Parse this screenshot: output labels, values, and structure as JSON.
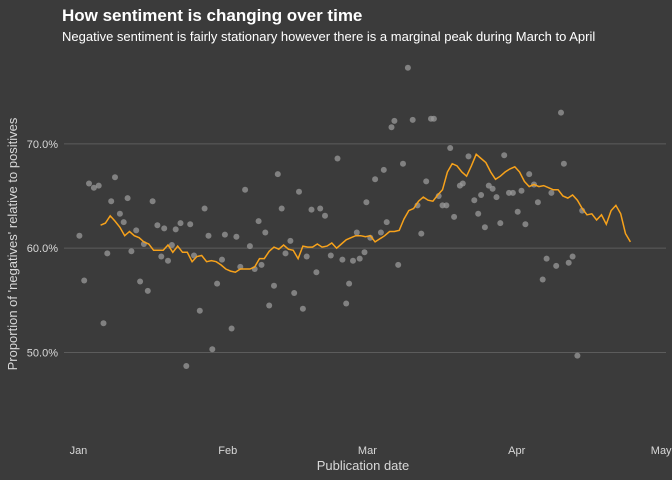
{
  "chart_data": {
    "type": "scatter",
    "title": "How sentiment is changing over time",
    "subtitle": "Negative sentiment is fairly stationary however there is a marginal peak during March to April",
    "xlabel": "Publication date",
    "ylabel": "Proportion of 'negatives' relative to positives",
    "x_range": [
      "2023-12-28",
      "2023-05-03"
    ],
    "x_range_days": [
      -3,
      122
    ],
    "ylim": [
      0.418,
      0.79
    ],
    "x_ticks": [
      {
        "label": "Jan",
        "day": 0
      },
      {
        "label": "Feb",
        "day": 31
      },
      {
        "label": "Mar",
        "day": 60
      },
      {
        "label": "Apr",
        "day": 91
      },
      {
        "label": "May",
        "day": 121
      }
    ],
    "y_ticks": [
      {
        "label": "50.0%",
        "value": 0.5
      },
      {
        "label": "60.0%",
        "value": 0.6
      },
      {
        "label": "70.0%",
        "value": 0.7
      }
    ],
    "grid": "horizontal",
    "colors": {
      "points": "#9a9a9a",
      "trend": "#f7a21b",
      "background": "#3b3b3b"
    },
    "series": [
      {
        "kind": "points",
        "points": [
          [
            0.2,
            0.612
          ],
          [
            1.2,
            0.569
          ],
          [
            2.2,
            0.662
          ],
          [
            3.2,
            0.658
          ],
          [
            4.2,
            0.66
          ],
          [
            5.2,
            0.528
          ],
          [
            6.0,
            0.595
          ],
          [
            6.8,
            0.645
          ],
          [
            7.6,
            0.668
          ],
          [
            8.6,
            0.633
          ],
          [
            9.4,
            0.625
          ],
          [
            10.2,
            0.648
          ],
          [
            11.0,
            0.597
          ],
          [
            12.0,
            0.617
          ],
          [
            12.8,
            0.568
          ],
          [
            13.6,
            0.604
          ],
          [
            14.4,
            0.559
          ],
          [
            15.4,
            0.645
          ],
          [
            16.4,
            0.622
          ],
          [
            17.2,
            0.592
          ],
          [
            17.8,
            0.619
          ],
          [
            18.6,
            0.588
          ],
          [
            19.4,
            0.603
          ],
          [
            20.2,
            0.618
          ],
          [
            21.2,
            0.624
          ],
          [
            22.4,
            0.487
          ],
          [
            23.2,
            0.623
          ],
          [
            24.0,
            0.593
          ],
          [
            25.2,
            0.54
          ],
          [
            26.2,
            0.638
          ],
          [
            27.0,
            0.612
          ],
          [
            27.8,
            0.503
          ],
          [
            28.8,
            0.566
          ],
          [
            29.8,
            0.589
          ],
          [
            30.4,
            0.613
          ],
          [
            31.8,
            0.523
          ],
          [
            32.8,
            0.611
          ],
          [
            33.6,
            0.582
          ],
          [
            34.6,
            0.656
          ],
          [
            35.6,
            0.602
          ],
          [
            36.6,
            0.58
          ],
          [
            37.4,
            0.626
          ],
          [
            38.0,
            0.584
          ],
          [
            38.8,
            0.615
          ],
          [
            39.6,
            0.545
          ],
          [
            40.6,
            0.564
          ],
          [
            41.4,
            0.671
          ],
          [
            42.2,
            0.638
          ],
          [
            43.0,
            0.595
          ],
          [
            44.0,
            0.607
          ],
          [
            44.8,
            0.557
          ],
          [
            45.8,
            0.654
          ],
          [
            46.6,
            0.542
          ],
          [
            47.4,
            0.592
          ],
          [
            48.4,
            0.637
          ],
          [
            49.4,
            0.577
          ],
          [
            50.2,
            0.638
          ],
          [
            51.2,
            0.631
          ],
          [
            52.4,
            0.593
          ],
          [
            53.8,
            0.686
          ],
          [
            54.8,
            0.589
          ],
          [
            55.6,
            0.547
          ],
          [
            56.2,
            0.566
          ],
          [
            57.0,
            0.588
          ],
          [
            57.8,
            0.615
          ],
          [
            58.4,
            0.59
          ],
          [
            59.4,
            0.596
          ],
          [
            59.8,
            0.644
          ],
          [
            60.6,
            0.61
          ],
          [
            61.6,
            0.666
          ],
          [
            62.8,
            0.615
          ],
          [
            63.4,
            0.675
          ],
          [
            64.0,
            0.625
          ],
          [
            65.0,
            0.716
          ],
          [
            65.6,
            0.722
          ],
          [
            66.4,
            0.584
          ],
          [
            67.4,
            0.681
          ],
          [
            68.4,
            0.773
          ],
          [
            69.4,
            0.723
          ],
          [
            70.4,
            0.641
          ],
          [
            71.2,
            0.614
          ],
          [
            72.2,
            0.664
          ],
          [
            73.2,
            0.724
          ],
          [
            73.8,
            0.724
          ],
          [
            74.8,
            0.65
          ],
          [
            75.6,
            0.641
          ],
          [
            76.4,
            0.641
          ],
          [
            77.2,
            0.696
          ],
          [
            78.0,
            0.63
          ],
          [
            79.2,
            0.66
          ],
          [
            79.8,
            0.662
          ],
          [
            81.0,
            0.688
          ],
          [
            82.2,
            0.646
          ],
          [
            83.0,
            0.633
          ],
          [
            83.6,
            0.651
          ],
          [
            84.4,
            0.62
          ],
          [
            85.2,
            0.66
          ],
          [
            86.0,
            0.657
          ],
          [
            86.8,
            0.649
          ],
          [
            87.6,
            0.624
          ],
          [
            88.4,
            0.689
          ],
          [
            89.4,
            0.653
          ],
          [
            90.2,
            0.653
          ],
          [
            91.2,
            0.635
          ],
          [
            92.0,
            0.655
          ],
          [
            92.8,
            0.623
          ],
          [
            93.6,
            0.671
          ],
          [
            94.6,
            0.661
          ],
          [
            95.4,
            0.644
          ],
          [
            96.4,
            0.57
          ],
          [
            97.2,
            0.59
          ],
          [
            98.2,
            0.653
          ],
          [
            99.2,
            0.583
          ],
          [
            100.2,
            0.73
          ],
          [
            100.8,
            0.681
          ],
          [
            101.8,
            0.586
          ],
          [
            102.6,
            0.592
          ],
          [
            103.6,
            0.497
          ],
          [
            104.6,
            0.636
          ]
        ]
      },
      {
        "kind": "moving-average",
        "line": [
          [
            4.6,
            0.622
          ],
          [
            5.6,
            0.624
          ],
          [
            6.6,
            0.631
          ],
          [
            7.6,
            0.626
          ],
          [
            8.6,
            0.62
          ],
          [
            9.6,
            0.612
          ],
          [
            10.6,
            0.616
          ],
          [
            11.6,
            0.612
          ],
          [
            12.6,
            0.61
          ],
          [
            13.6,
            0.606
          ],
          [
            14.6,
            0.604
          ],
          [
            15.6,
            0.598
          ],
          [
            16.6,
            0.598
          ],
          [
            17.6,
            0.598
          ],
          [
            18.6,
            0.603
          ],
          [
            19.6,
            0.596
          ],
          [
            20.6,
            0.602
          ],
          [
            21.6,
            0.596
          ],
          [
            22.6,
            0.596
          ],
          [
            23.6,
            0.587
          ],
          [
            24.6,
            0.592
          ],
          [
            25.6,
            0.593
          ],
          [
            26.6,
            0.587
          ],
          [
            27.6,
            0.588
          ],
          [
            28.6,
            0.587
          ],
          [
            29.6,
            0.584
          ],
          [
            30.6,
            0.58
          ],
          [
            31.6,
            0.578
          ],
          [
            32.6,
            0.577
          ],
          [
            33.6,
            0.58
          ],
          [
            34.6,
            0.58
          ],
          [
            35.6,
            0.58
          ],
          [
            36.6,
            0.582
          ],
          [
            37.6,
            0.59
          ],
          [
            38.6,
            0.59
          ],
          [
            39.6,
            0.597
          ],
          [
            40.6,
            0.601
          ],
          [
            41.6,
            0.599
          ],
          [
            42.6,
            0.603
          ],
          [
            43.6,
            0.599
          ],
          [
            44.6,
            0.598
          ],
          [
            45.6,
            0.59
          ],
          [
            46.6,
            0.602
          ],
          [
            47.6,
            0.601
          ],
          [
            48.6,
            0.601
          ],
          [
            49.6,
            0.604
          ],
          [
            50.6,
            0.601
          ],
          [
            51.6,
            0.602
          ],
          [
            52.6,
            0.605
          ],
          [
            53.6,
            0.6
          ],
          [
            54.6,
            0.604
          ],
          [
            55.6,
            0.608
          ],
          [
            56.6,
            0.61
          ],
          [
            57.6,
            0.612
          ],
          [
            58.6,
            0.612
          ],
          [
            59.6,
            0.611
          ],
          [
            60.6,
            0.612
          ],
          [
            61.6,
            0.606
          ],
          [
            62.6,
            0.609
          ],
          [
            63.6,
            0.612
          ],
          [
            64.6,
            0.616
          ],
          [
            65.6,
            0.616
          ],
          [
            66.6,
            0.617
          ],
          [
            67.6,
            0.628
          ],
          [
            68.6,
            0.636
          ],
          [
            69.6,
            0.638
          ],
          [
            70.6,
            0.645
          ],
          [
            71.6,
            0.649
          ],
          [
            72.6,
            0.646
          ],
          [
            73.6,
            0.645
          ],
          [
            74.6,
            0.651
          ],
          [
            75.6,
            0.656
          ],
          [
            76.6,
            0.673
          ],
          [
            77.6,
            0.681
          ],
          [
            78.6,
            0.679
          ],
          [
            79.6,
            0.673
          ],
          [
            80.6,
            0.669
          ],
          [
            81.6,
            0.679
          ],
          [
            82.6,
            0.69
          ],
          [
            83.6,
            0.686
          ],
          [
            84.6,
            0.682
          ],
          [
            85.6,
            0.673
          ],
          [
            86.6,
            0.666
          ],
          [
            87.6,
            0.669
          ],
          [
            88.6,
            0.673
          ],
          [
            89.6,
            0.676
          ],
          [
            90.6,
            0.678
          ],
          [
            91.6,
            0.673
          ],
          [
            92.6,
            0.664
          ],
          [
            93.6,
            0.659
          ],
          [
            94.6,
            0.661
          ],
          [
            95.6,
            0.659
          ],
          [
            96.6,
            0.66
          ],
          [
            97.6,
            0.658
          ],
          [
            98.6,
            0.656
          ],
          [
            99.6,
            0.656
          ],
          [
            100.6,
            0.65
          ],
          [
            101.6,
            0.648
          ],
          [
            102.6,
            0.651
          ],
          [
            103.6,
            0.646
          ],
          [
            104.6,
            0.638
          ],
          [
            105.6,
            0.632
          ],
          [
            106.6,
            0.633
          ],
          [
            107.6,
            0.627
          ],
          [
            108.6,
            0.632
          ],
          [
            109.6,
            0.623
          ],
          [
            110.6,
            0.636
          ],
          [
            111.6,
            0.641
          ],
          [
            112.6,
            0.633
          ],
          [
            113.6,
            0.614
          ],
          [
            114.6,
            0.606
          ]
        ]
      }
    ]
  }
}
